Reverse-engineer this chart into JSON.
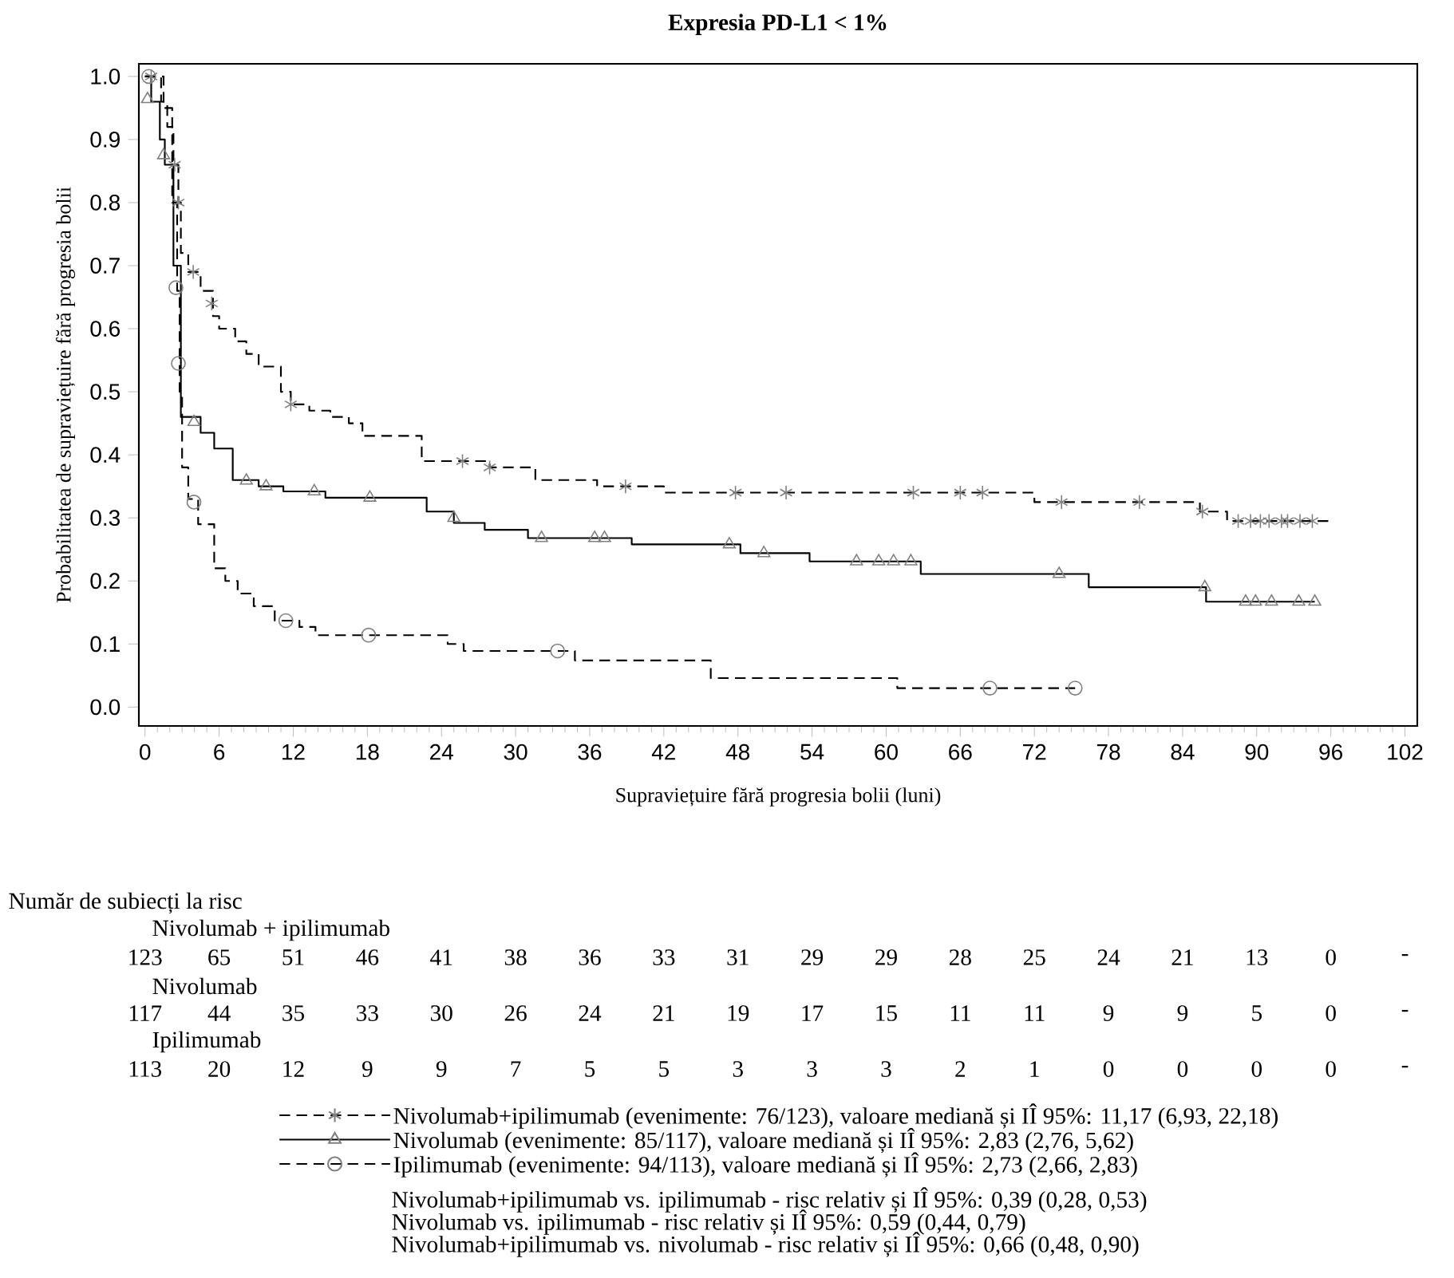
{
  "chart_data": {
    "type": "step",
    "title": "Expresia PD-L1 < 1%",
    "xlabel": "Supraviețuire fără progresia bolii (luni)",
    "ylabel": "Probabilitatea de supraviețuire fără progresia bolii",
    "xlim": [
      -0.5,
      103
    ],
    "xticks": [
      0,
      6,
      12,
      18,
      24,
      30,
      36,
      42,
      48,
      54,
      60,
      66,
      72,
      78,
      84,
      90,
      96,
      102
    ],
    "ylim": [
      -0.03,
      1.02
    ],
    "yticks": [
      {
        "value": 0,
        "label": "0.0"
      },
      0.1,
      0.2,
      0.3,
      0.4,
      0.5,
      0.6,
      0.7,
      0.8,
      0.9,
      {
        "value": 1,
        "label": "1.0"
      }
    ],
    "legend": "bottom",
    "series": [
      {
        "name": "Nivolumab+ipilimumab (evenimente: 76/123), valoare mediană și IÎ 95%: 11,17 (6,93, 22,18)",
        "color": "#000000",
        "line_style": "dashed",
        "x": [
          0,
          1.3,
          1.8,
          2.3,
          2.7,
          2.9,
          3.5,
          4.5,
          5.5,
          6.0,
          7.3,
          8.2,
          9.2,
          11.0,
          11.8,
          13.3,
          15.0,
          16.5,
          17.6,
          22.4,
          27.9,
          31.6,
          36.6,
          42.0,
          72.0,
          85.4,
          87.6,
          96
        ],
        "values": [
          1.0,
          0.96,
          0.92,
          0.86,
          0.8,
          0.72,
          0.69,
          0.66,
          0.62,
          0.6,
          0.58,
          0.56,
          0.54,
          0.5,
          0.48,
          0.47,
          0.46,
          0.45,
          0.43,
          0.39,
          0.38,
          0.36,
          0.35,
          0.34,
          0.325,
          0.31,
          0.295,
          0.295
        ]
      },
      {
        "name": "Nivolumab (evenimente: 85/117), valoare mediană și IÎ 95%: 2,83 (2,76, 5,62)",
        "color": "#000000",
        "line_style": "solid",
        "x": [
          0,
          0.5,
          1.2,
          1.6,
          2.3,
          2.9,
          4.5,
          5.6,
          7.1,
          9.2,
          11.2,
          14.6,
          22.8,
          25.0,
          27.5,
          31.0,
          39.4,
          48.2,
          53.8,
          62.8,
          76.4,
          85.9,
          94.7
        ],
        "values": [
          1.0,
          0.96,
          0.9,
          0.86,
          0.7,
          0.46,
          0.435,
          0.41,
          0.36,
          0.35,
          0.342,
          0.332,
          0.31,
          0.292,
          0.281,
          0.268,
          0.258,
          0.244,
          0.231,
          0.211,
          0.19,
          0.167,
          0.167
        ]
      },
      {
        "name": "Ipilimumab (evenimente: 94/113), valoare mediană și IÎ 95%: 2,73 (2,66, 2,83)",
        "color": "#000000",
        "line_style": "dashed",
        "x": [
          0,
          1.5,
          2.2,
          2.6,
          2.8,
          3.0,
          3.5,
          4.3,
          5.6,
          6.5,
          7.5,
          8.8,
          10.5,
          12.5,
          13.8,
          24.5,
          25.8,
          34.8,
          45.8,
          60.9,
          75.3
        ],
        "values": [
          1.0,
          0.95,
          0.8,
          0.66,
          0.5,
          0.38,
          0.33,
          0.29,
          0.22,
          0.2,
          0.18,
          0.16,
          0.137,
          0.127,
          0.114,
          0.1,
          0.089,
          0.074,
          0.046,
          0.03,
          0.03
        ]
      },
      {
        "type": "scatter",
        "color": "#808080",
        "marker": "cross",
        "x": [
          0.5,
          2.4,
          2.7,
          3.9,
          5.4,
          11.8,
          25.7,
          27.9,
          38.9,
          47.8,
          51.9,
          62.2,
          66.0,
          67.8,
          74.2,
          80.5,
          85.6,
          88.5,
          89.5,
          90.3,
          91.0,
          92.0,
          92.5,
          93.5,
          94.5
        ],
        "values": [
          1.0,
          0.86,
          0.8,
          0.69,
          0.64,
          0.48,
          0.39,
          0.38,
          0.35,
          0.34,
          0.34,
          0.34,
          0.34,
          0.34,
          0.325,
          0.325,
          0.31,
          0.295,
          0.295,
          0.295,
          0.295,
          0.295,
          0.295,
          0.295,
          0.295
        ]
      },
      {
        "type": "scatter",
        "color": "#808080",
        "marker": "triangle",
        "x": [
          0.2,
          1.5,
          3.96,
          8.2,
          9.8,
          13.7,
          18.2,
          25.0,
          32.1,
          36.4,
          37.2,
          47.3,
          50.1,
          57.6,
          59.4,
          60.6,
          62.0,
          74.0,
          85.8,
          89.1,
          89.9,
          91.2,
          93.4,
          94.7
        ],
        "values": [
          0.964,
          0.875,
          0.452,
          0.359,
          0.35,
          0.342,
          0.332,
          0.3,
          0.268,
          0.268,
          0.268,
          0.258,
          0.244,
          0.231,
          0.231,
          0.231,
          0.231,
          0.211,
          0.19,
          0.167,
          0.167,
          0.167,
          0.167,
          0.167
        ]
      },
      {
        "type": "scatter",
        "color": "#808080",
        "marker": "circle",
        "x": [
          0.3,
          2.5,
          2.7,
          3.96,
          11.4,
          18.1,
          33.4,
          68.4,
          75.3
        ],
        "values": [
          1.0,
          0.665,
          0.545,
          0.325,
          0.137,
          0.114,
          0.089,
          0.03,
          0.03
        ]
      }
    ],
    "annotations": [
      "Număr de subiecți la risc",
      "Nivolumab + ipilimumab",
      "123",
      "65",
      "51",
      "46",
      "41",
      "38",
      "36",
      "33",
      "31",
      "29",
      "29",
      "28",
      "25",
      "24",
      "21",
      "13",
      "0",
      "-",
      "Nivolumab",
      "117",
      "44",
      "35",
      "33",
      "30",
      "26",
      "24",
      "21",
      "19",
      "17",
      "15",
      "11",
      "11",
      "9",
      "9",
      "5",
      "0",
      "-",
      "Ipilimumab",
      "113",
      "20",
      "12",
      "9",
      "9",
      "7",
      "5",
      "5",
      "3",
      "3",
      "3",
      "2",
      "1",
      "0",
      "0",
      "0",
      "0",
      "-",
      "Nivolumab+ipilimumab vs. ipilimumab - risc relativ și IÎ 95%: 0,39 (0,28, 0,53)",
      "Nivolumab vs. ipilimumab - risc relativ și IÎ 95%: 0,59 (0,44, 0,79)",
      "Nivolumab+ipilimumab vs. nivolumab - risc relativ și IÎ 95%: 0,66 (0,48, 0,90)"
    ]
  }
}
